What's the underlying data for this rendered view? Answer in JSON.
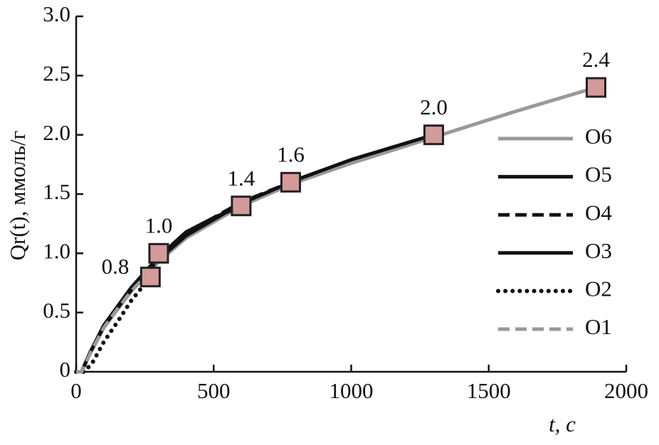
{
  "chart_data": {
    "type": "line",
    "xlabel": "t, с",
    "ylabel": "Qr(t), ммоль/г",
    "xlim": [
      0,
      2000
    ],
    "xticks": [
      0,
      500,
      1000,
      1500,
      2000
    ],
    "ylim": [
      0,
      3
    ],
    "yticks": [
      0,
      0.5,
      {
        "value": 1,
        "label": "1.0"
      },
      1.5,
      {
        "value": 2,
        "label": "2.0"
      },
      2.5,
      {
        "value": 3,
        "label": "3.0"
      }
    ],
    "legend": "right",
    "series": [
      {
        "name": "O6",
        "color": "#999999",
        "linestyle": "solid",
        "x": [
          0,
          20,
          50,
          100,
          200,
          300,
          400,
          600,
          800,
          1000,
          1300,
          1600,
          1890
        ],
        "values": [
          0,
          0,
          0.15,
          0.37,
          0.68,
          0.93,
          1.13,
          1.4,
          1.6,
          1.76,
          1.98,
          2.2,
          2.4
        ]
      },
      {
        "name": "O5",
        "color": "#111111",
        "linestyle": "solid",
        "x": [
          0,
          20,
          50,
          100,
          200,
          300,
          400,
          600,
          800,
          1000,
          1300
        ],
        "values": [
          0,
          0,
          0.16,
          0.38,
          0.69,
          0.95,
          1.15,
          1.42,
          1.62,
          1.79,
          2.0
        ]
      },
      {
        "name": "O4",
        "color": "#111111",
        "linestyle": "dashed",
        "x": [
          0,
          20,
          50,
          100,
          200,
          300,
          400,
          600,
          780
        ],
        "values": [
          0,
          0,
          0.16,
          0.38,
          0.7,
          0.96,
          1.17,
          1.43,
          1.6
        ]
      },
      {
        "name": "O3",
        "color": "#111111",
        "linestyle": "solid",
        "x": [
          0,
          20,
          50,
          100,
          200,
          300,
          400,
          500,
          600
        ],
        "values": [
          0,
          0,
          0.16,
          0.39,
          0.71,
          0.97,
          1.18,
          1.3,
          1.4
        ]
      },
      {
        "name": "O2",
        "color": "#111111",
        "linestyle": "dotted",
        "x": [
          0,
          30,
          60,
          100,
          150,
          200,
          270
        ],
        "values": [
          0,
          0,
          0.08,
          0.25,
          0.42,
          0.6,
          0.8
        ]
      },
      {
        "name": "O1",
        "color": "#999999",
        "linestyle": "dashed",
        "x": [
          0,
          20,
          50,
          100,
          150,
          200,
          270,
          300
        ],
        "values": [
          0,
          0,
          0.15,
          0.37,
          0.53,
          0.68,
          0.85,
          0.95
        ]
      }
    ],
    "markers": {
      "color": "#d49a9a",
      "x": [
        270,
        300,
        600,
        780,
        1300,
        1890
      ],
      "values": [
        0.8,
        1.0,
        1.4,
        1.6,
        2.0,
        2.4
      ],
      "value_labels": [
        "0.8",
        "1.0",
        "1.4",
        "1.6",
        "2.0",
        "2.4"
      ]
    }
  }
}
